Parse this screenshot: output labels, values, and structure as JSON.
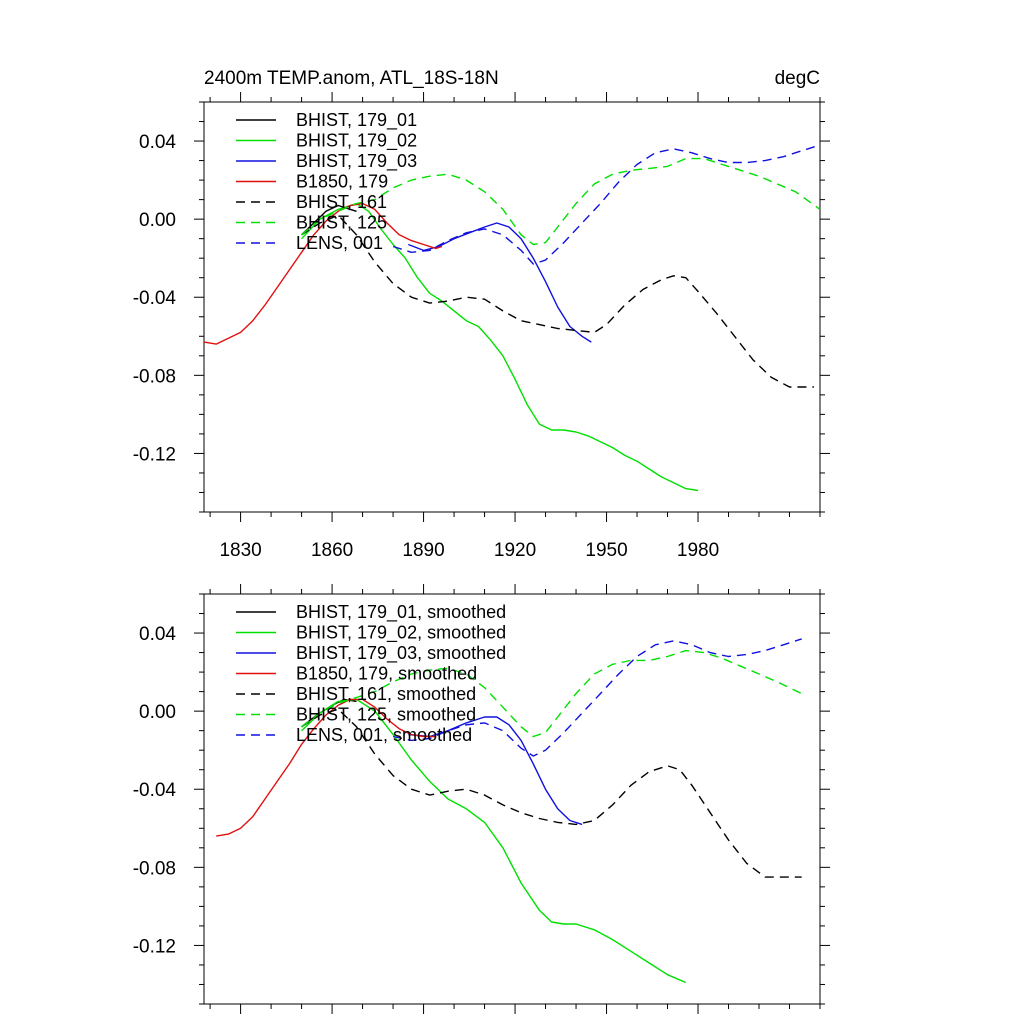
{
  "colors": {
    "black": "#000000",
    "green": "#00e000",
    "blue": "#1010e0",
    "red": "#e01010"
  },
  "chart_data": [
    {
      "type": "line",
      "title": "2400m TEMP.anom, ATL_18S-18N",
      "units_label": "degC",
      "xlim": [
        1818,
        2020
      ],
      "ylim": [
        -0.15,
        0.06
      ],
      "x_ticks": [
        1830,
        1860,
        1890,
        1920,
        1950,
        1980
      ],
      "y_ticks": [
        0.04,
        0.0,
        -0.04,
        -0.08,
        -0.12
      ],
      "y_tick_labels": [
        "0.04",
        "0.00",
        "-0.04",
        "-0.08",
        "-0.12"
      ],
      "x_tick_labels": [
        "1830",
        "1860",
        "1890",
        "1920",
        "1950",
        "1980"
      ],
      "grid": false,
      "legend_position": "top-left",
      "series": [
        {
          "name": "BHIST, 179_01",
          "color": "black",
          "dashed": false,
          "x": [
            1850,
            1854,
            1858,
            1862,
            1866,
            1868
          ],
          "y": [
            -0.008,
            -0.002,
            0.004,
            0.007,
            0.005,
            0.004
          ]
        },
        {
          "name": "BHIST, 179_02",
          "color": "green",
          "dashed": false,
          "x": [
            1850,
            1856,
            1862,
            1868,
            1872,
            1876,
            1880,
            1884,
            1888,
            1892,
            1896,
            1900,
            1904,
            1908,
            1912,
            1916,
            1920,
            1924,
            1928,
            1932,
            1936,
            1940,
            1944,
            1948,
            1952,
            1956,
            1960,
            1964,
            1968,
            1972,
            1976,
            1980
          ],
          "y": [
            -0.01,
            0.0,
            0.005,
            0.008,
            0.004,
            -0.005,
            -0.013,
            -0.02,
            -0.03,
            -0.038,
            -0.042,
            -0.047,
            -0.052,
            -0.055,
            -0.062,
            -0.07,
            -0.082,
            -0.095,
            -0.105,
            -0.108,
            -0.108,
            -0.109,
            -0.111,
            -0.114,
            -0.117,
            -0.121,
            -0.124,
            -0.128,
            -0.132,
            -0.135,
            -0.138,
            -0.139
          ]
        },
        {
          "name": "BHIST, 179_03",
          "color": "blue",
          "dashed": false,
          "x": [
            1885,
            1890,
            1895,
            1900,
            1905,
            1910,
            1914,
            1918,
            1922,
            1926,
            1930,
            1934,
            1938,
            1942,
            1945
          ],
          "y": [
            -0.013,
            -0.016,
            -0.014,
            -0.01,
            -0.007,
            -0.004,
            -0.002,
            -0.004,
            -0.01,
            -0.02,
            -0.032,
            -0.045,
            -0.055,
            -0.06,
            -0.063
          ]
        },
        {
          "name": "B1850, 179",
          "color": "red",
          "dashed": false,
          "x": [
            1818,
            1822,
            1826,
            1830,
            1834,
            1838,
            1842,
            1846,
            1850,
            1854,
            1858,
            1862,
            1866,
            1870,
            1874,
            1878,
            1882,
            1886,
            1890,
            1894,
            1896
          ],
          "y": [
            -0.063,
            -0.064,
            -0.061,
            -0.058,
            -0.052,
            -0.044,
            -0.035,
            -0.026,
            -0.017,
            -0.008,
            -0.001,
            0.004,
            0.007,
            0.008,
            0.005,
            -0.002,
            -0.008,
            -0.011,
            -0.013,
            -0.015,
            -0.014
          ]
        },
        {
          "name": "BHIST, 161",
          "color": "black",
          "dashed": true,
          "x": [
            1850,
            1856,
            1862,
            1868,
            1874,
            1880,
            1886,
            1892,
            1898,
            1904,
            1910,
            1916,
            1922,
            1928,
            1934,
            1940,
            1946,
            1950,
            1956,
            1962,
            1968,
            1972,
            1976,
            1980,
            1986,
            1992,
            1998,
            2004,
            2010,
            2014,
            2018
          ],
          "y": [
            -0.008,
            -0.002,
            0.002,
            -0.008,
            -0.022,
            -0.033,
            -0.04,
            -0.043,
            -0.042,
            -0.04,
            -0.041,
            -0.047,
            -0.052,
            -0.054,
            -0.056,
            -0.057,
            -0.058,
            -0.054,
            -0.044,
            -0.036,
            -0.031,
            -0.029,
            -0.03,
            -0.037,
            -0.048,
            -0.06,
            -0.072,
            -0.081,
            -0.086,
            -0.086,
            -0.086
          ]
        },
        {
          "name": "BHIST, 125",
          "color": "green",
          "dashed": true,
          "x": [
            1850,
            1856,
            1862,
            1868,
            1874,
            1880,
            1886,
            1892,
            1898,
            1904,
            1910,
            1916,
            1922,
            1926,
            1930,
            1934,
            1940,
            1946,
            1952,
            1958,
            1964,
            1970,
            1976,
            1982,
            1988,
            1994,
            2000,
            2006,
            2012,
            2020
          ],
          "y": [
            -0.008,
            0.0,
            0.004,
            0.008,
            0.01,
            0.016,
            0.02,
            0.022,
            0.023,
            0.02,
            0.014,
            0.005,
            -0.008,
            -0.013,
            -0.012,
            -0.004,
            0.008,
            0.018,
            0.023,
            0.025,
            0.026,
            0.027,
            0.031,
            0.031,
            0.028,
            0.025,
            0.022,
            0.018,
            0.014,
            0.005
          ]
        },
        {
          "name": "LENS, 001",
          "color": "blue",
          "dashed": true,
          "x": [
            1880,
            1886,
            1892,
            1898,
            1904,
            1910,
            1916,
            1922,
            1926,
            1930,
            1936,
            1942,
            1948,
            1954,
            1960,
            1966,
            1972,
            1978,
            1984,
            1990,
            1996,
            2002,
            2008,
            2014,
            2020
          ],
          "y": [
            -0.014,
            -0.017,
            -0.016,
            -0.011,
            -0.007,
            -0.005,
            -0.008,
            -0.016,
            -0.023,
            -0.021,
            -0.012,
            -0.002,
            0.008,
            0.019,
            0.028,
            0.034,
            0.036,
            0.034,
            0.031,
            0.029,
            0.029,
            0.03,
            0.032,
            0.035,
            0.038
          ]
        }
      ]
    },
    {
      "type": "line",
      "xlim": [
        1818,
        2020
      ],
      "ylim": [
        -0.15,
        0.06
      ],
      "x_ticks": [
        1830,
        1860,
        1890,
        1920,
        1950,
        1980
      ],
      "y_ticks": [
        0.04,
        0.0,
        -0.04,
        -0.08,
        -0.12
      ],
      "y_tick_labels": [
        "0.04",
        "0.00",
        "-0.04",
        "-0.08",
        "-0.12"
      ],
      "grid": false,
      "legend_position": "top-left",
      "series": [
        {
          "name": "BHIST, 179_01, smoothed",
          "color": "black",
          "dashed": false,
          "x": [
            1850,
            1855,
            1860,
            1864,
            1868
          ],
          "y": [
            -0.008,
            -0.002,
            0.003,
            0.006,
            0.005
          ]
        },
        {
          "name": "BHIST, 179_02, smoothed",
          "color": "green",
          "dashed": false,
          "x": [
            1850,
            1856,
            1862,
            1868,
            1874,
            1880,
            1886,
            1892,
            1898,
            1904,
            1910,
            1916,
            1922,
            1928,
            1932,
            1936,
            1940,
            1946,
            1952,
            1958,
            1964,
            1970,
            1976
          ],
          "y": [
            -0.01,
            -0.001,
            0.005,
            0.006,
            0.0,
            -0.012,
            -0.025,
            -0.036,
            -0.045,
            -0.05,
            -0.057,
            -0.07,
            -0.088,
            -0.102,
            -0.108,
            -0.109,
            -0.109,
            -0.112,
            -0.117,
            -0.123,
            -0.129,
            -0.135,
            -0.139
          ]
        },
        {
          "name": "BHIST, 179_03, smoothed",
          "color": "blue",
          "dashed": false,
          "x": [
            1885,
            1892,
            1898,
            1904,
            1910,
            1914,
            1918,
            1922,
            1926,
            1930,
            1934,
            1938,
            1942
          ],
          "y": [
            -0.012,
            -0.013,
            -0.01,
            -0.006,
            -0.003,
            -0.003,
            -0.007,
            -0.015,
            -0.027,
            -0.04,
            -0.05,
            -0.056,
            -0.058
          ]
        },
        {
          "name": "B1850, 179, smoothed",
          "color": "red",
          "dashed": false,
          "x": [
            1822,
            1826,
            1830,
            1834,
            1838,
            1842,
            1846,
            1850,
            1854,
            1858,
            1862,
            1866,
            1870,
            1874,
            1878,
            1882,
            1886,
            1890,
            1894
          ],
          "y": [
            -0.064,
            -0.063,
            -0.06,
            -0.054,
            -0.045,
            -0.036,
            -0.027,
            -0.017,
            -0.009,
            -0.002,
            0.003,
            0.006,
            0.006,
            0.002,
            -0.004,
            -0.009,
            -0.012,
            -0.013,
            -0.013
          ]
        },
        {
          "name": "BHIST, 161, smoothed",
          "color": "black",
          "dashed": true,
          "x": [
            1850,
            1856,
            1862,
            1868,
            1874,
            1880,
            1886,
            1892,
            1898,
            1904,
            1910,
            1916,
            1922,
            1928,
            1934,
            1940,
            1946,
            1952,
            1958,
            1964,
            1970,
            1974,
            1978,
            1984,
            1990,
            1996,
            2002,
            2008,
            2014
          ],
          "y": [
            -0.008,
            -0.002,
            0.001,
            -0.008,
            -0.022,
            -0.033,
            -0.04,
            -0.043,
            -0.041,
            -0.04,
            -0.043,
            -0.048,
            -0.052,
            -0.055,
            -0.057,
            -0.058,
            -0.056,
            -0.048,
            -0.038,
            -0.031,
            -0.028,
            -0.03,
            -0.038,
            -0.052,
            -0.066,
            -0.078,
            -0.085,
            -0.085,
            -0.085
          ]
        },
        {
          "name": "BHIST, 125, smoothed",
          "color": "green",
          "dashed": true,
          "x": [
            1850,
            1856,
            1862,
            1868,
            1874,
            1880,
            1886,
            1892,
            1898,
            1904,
            1910,
            1916,
            1922,
            1926,
            1930,
            1934,
            1940,
            1946,
            1952,
            1958,
            1964,
            1970,
            1976,
            1982,
            1988,
            1994,
            2000,
            2006,
            2014
          ],
          "y": [
            -0.008,
            -0.001,
            0.004,
            0.007,
            0.01,
            0.015,
            0.019,
            0.021,
            0.022,
            0.019,
            0.012,
            0.002,
            -0.008,
            -0.013,
            -0.011,
            -0.003,
            0.009,
            0.019,
            0.024,
            0.026,
            0.026,
            0.028,
            0.031,
            0.03,
            0.027,
            0.023,
            0.019,
            0.015,
            0.009
          ]
        },
        {
          "name": "LENS, 001, smoothed",
          "color": "blue",
          "dashed": true,
          "x": [
            1880,
            1886,
            1892,
            1898,
            1904,
            1910,
            1916,
            1922,
            1926,
            1930,
            1936,
            1942,
            1948,
            1954,
            1960,
            1966,
            1972,
            1978,
            1984,
            1990,
            1996,
            2002,
            2008,
            2014
          ],
          "y": [
            -0.013,
            -0.015,
            -0.014,
            -0.01,
            -0.007,
            -0.006,
            -0.01,
            -0.019,
            -0.023,
            -0.02,
            -0.011,
            -0.001,
            0.009,
            0.019,
            0.028,
            0.034,
            0.036,
            0.034,
            0.03,
            0.028,
            0.029,
            0.031,
            0.034,
            0.037
          ]
        }
      ]
    }
  ]
}
